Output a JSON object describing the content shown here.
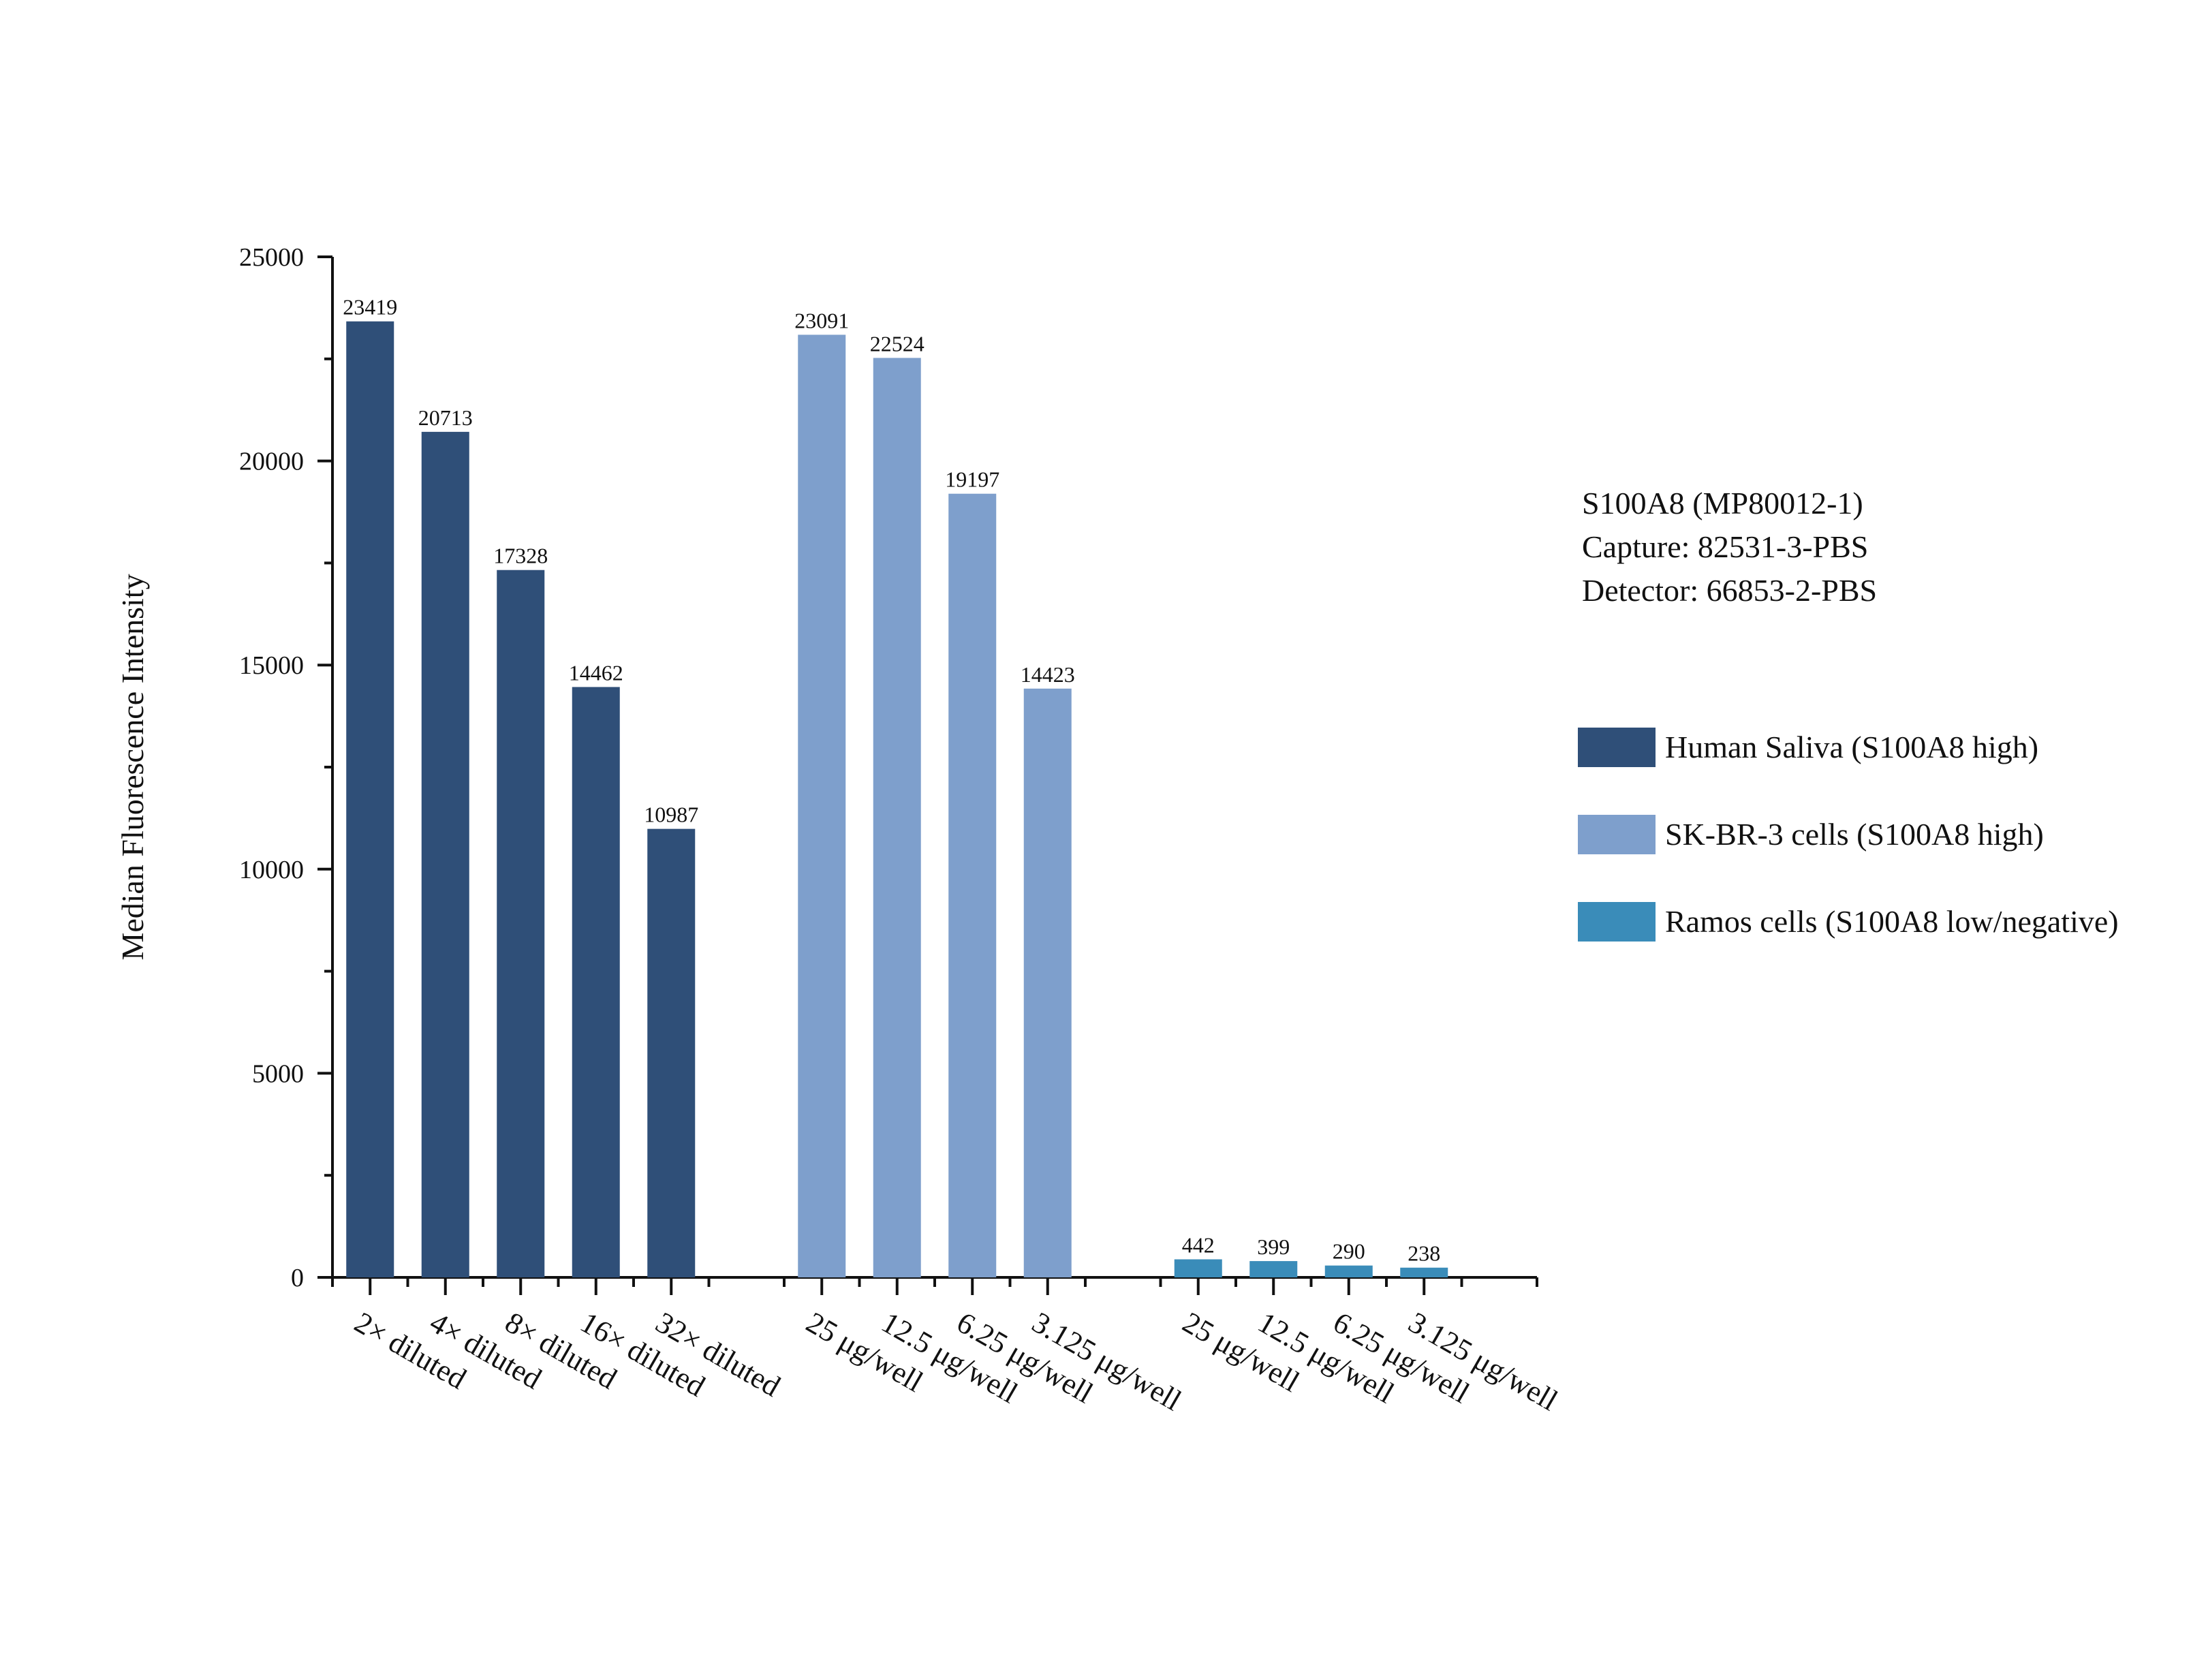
{
  "chart_data": {
    "type": "bar",
    "ylabel": "Median Fluorescence Intensity",
    "xlabel": "",
    "ylim": [
      0,
      25000
    ],
    "y_ticks": [
      0,
      5000,
      10000,
      15000,
      20000,
      25000
    ],
    "grid": false,
    "legend_position": "right",
    "info_lines": [
      "S100A8 (MP80012-1)",
      "Capture: 82531-3-PBS",
      "Detector: 66853-2-PBS"
    ],
    "series": [
      {
        "name": "Human Saliva (S100A8 high)",
        "color": "#2f4f78",
        "categories": [
          "2× diluted",
          "4× diluted",
          "8× diluted",
          "16× diluted",
          "32× diluted"
        ],
        "values": [
          23419,
          20713,
          17328,
          14462,
          10987
        ]
      },
      {
        "name": "SK-BR-3 cells (S100A8 high)",
        "color": "#7e9fcc",
        "categories": [
          "25 μg/well",
          "12.5 μg/well",
          "6.25 μg/well",
          "3.125 μg/well"
        ],
        "values": [
          23091,
          22524,
          19197,
          14423
        ]
      },
      {
        "name": "Ramos cells (S100A8 low/negative)",
        "color": "#3a8cb9",
        "categories": [
          "25 μg/well",
          "12.5 μg/well",
          "6.25 μg/well",
          "3.125 μg/well"
        ],
        "values": [
          442,
          399,
          290,
          238
        ]
      }
    ]
  }
}
